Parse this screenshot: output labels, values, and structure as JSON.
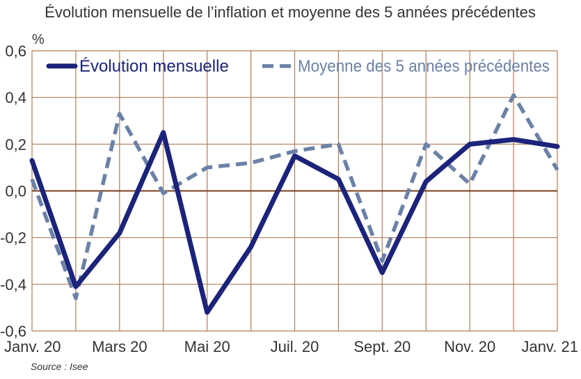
{
  "chart_data": {
    "type": "line",
    "title": "Évolution mensuelle de l’inflation et moyenne des 5 années précédentes",
    "unit_label": "%",
    "source": "Source : Isee",
    "x_positions": [
      0,
      1,
      2,
      3,
      4,
      5,
      6,
      7,
      8,
      9,
      10,
      11,
      12
    ],
    "x_tick_labels": [
      {
        "pos": 0,
        "label": "Janv. 20"
      },
      {
        "pos": 2,
        "label": "Mars 20"
      },
      {
        "pos": 4,
        "label": "Mai 20"
      },
      {
        "pos": 6,
        "label": "Juil. 20"
      },
      {
        "pos": 8,
        "label": "Sept. 20"
      },
      {
        "pos": 10,
        "label": "Nov. 20"
      },
      {
        "pos": 12,
        "label": "Janv. 21"
      }
    ],
    "yticks": [
      {
        "value": 0.6,
        "label": "0,6"
      },
      {
        "value": 0.4,
        "label": "0,4"
      },
      {
        "value": 0.2,
        "label": "0,2"
      },
      {
        "value": 0.0,
        "label": "0,0"
      },
      {
        "value": -0.2,
        "label": "-0,2"
      },
      {
        "value": -0.4,
        "label": "-0,4"
      },
      {
        "value": -0.6,
        "label": "-0,6"
      }
    ],
    "ylim": [
      -0.6,
      0.6
    ],
    "grid": true,
    "legend_position": "top",
    "series": [
      {
        "name": "Évolution mensuelle",
        "color": "#1b237a",
        "style": "solid",
        "values": [
          0.13,
          -0.41,
          -0.18,
          0.25,
          -0.52,
          -0.24,
          0.15,
          0.05,
          -0.35,
          0.04,
          0.2,
          0.22,
          0.19
        ]
      },
      {
        "name": "Moyenne des 5 années précédentes",
        "color": "#6b81a6",
        "style": "dashed",
        "values": [
          0.05,
          -0.46,
          0.33,
          -0.01,
          0.1,
          0.12,
          0.17,
          0.2,
          -0.3,
          0.2,
          0.03,
          0.41,
          0.09
        ]
      }
    ]
  }
}
